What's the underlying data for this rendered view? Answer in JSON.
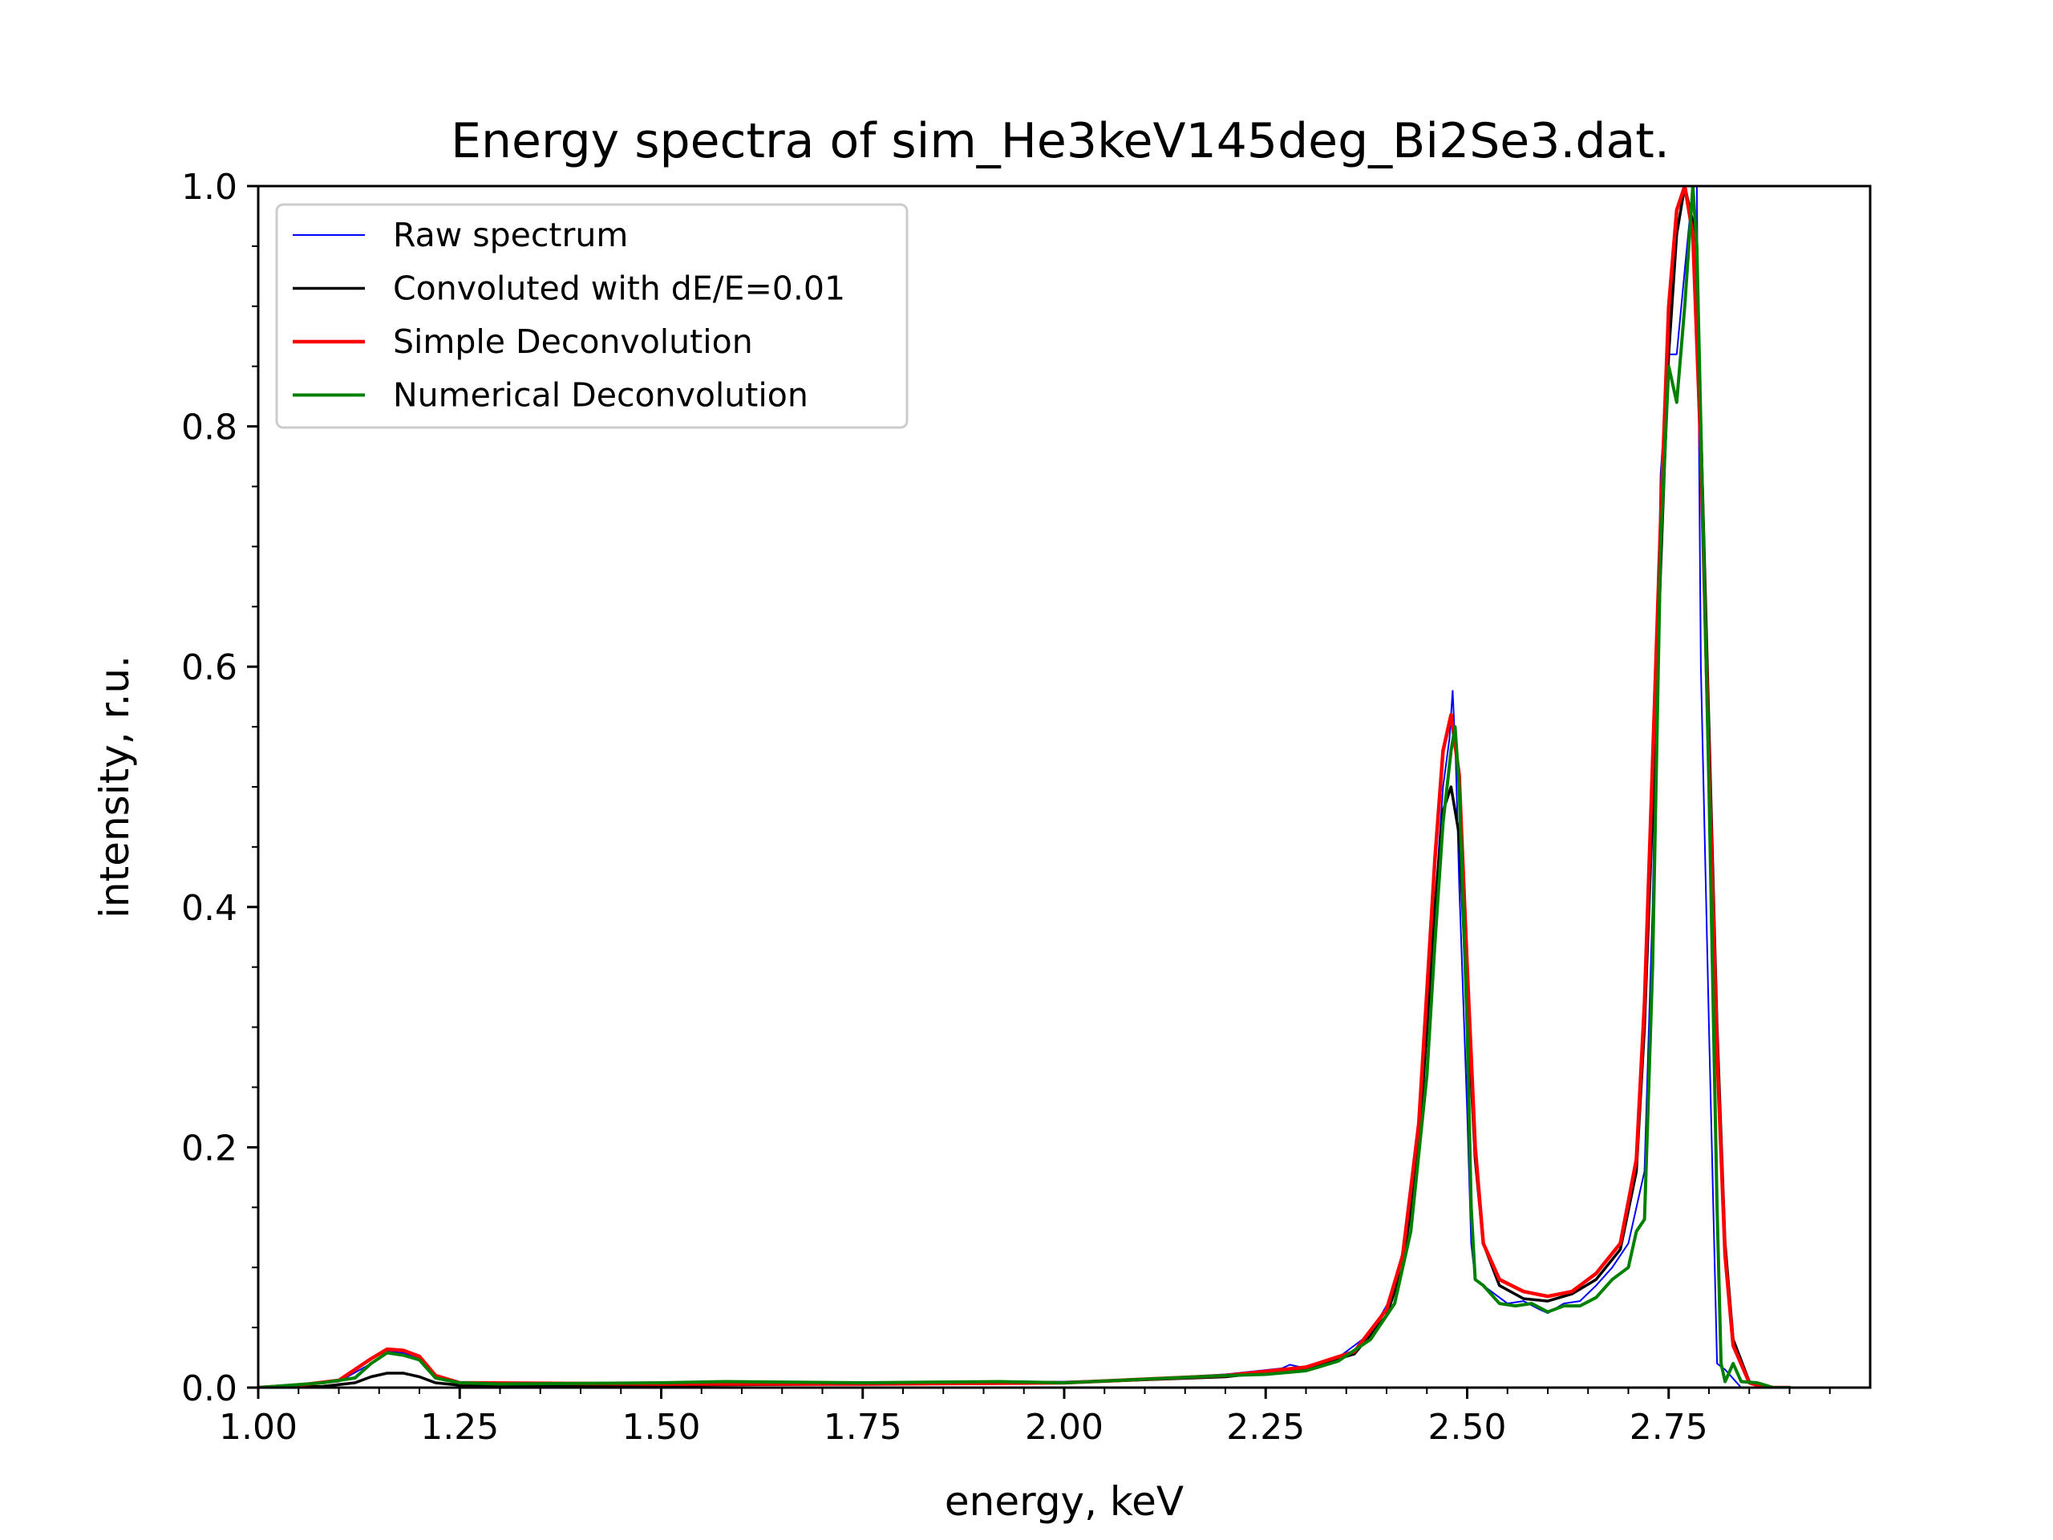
{
  "chart_data": {
    "type": "line",
    "title": "Energy spectra of sim_He3keV145deg_Bi2Se3.dat.",
    "xlabel": "energy, keV",
    "ylabel": "intensity, r.u.",
    "xlim": [
      1.0,
      3.0
    ],
    "ylim": [
      0.0,
      1.0
    ],
    "x_major_ticks": [
      "1.00",
      "1.25",
      "1.50",
      "1.75",
      "2.00",
      "2.25",
      "2.50",
      "2.75"
    ],
    "y_major_ticks": [
      "0.0",
      "0.2",
      "0.4",
      "0.6",
      "0.8",
      "1.0"
    ],
    "x_minor_step": 0.05,
    "y_minor_step": 0.05,
    "grid": false,
    "legend_position": "top-left",
    "series": [
      {
        "name": "Raw spectrum",
        "color": "#0000ff",
        "points": [
          [
            1.0,
            0.0
          ],
          [
            1.05,
            0.002
          ],
          [
            1.1,
            0.005
          ],
          [
            1.14,
            0.02
          ],
          [
            1.16,
            0.03
          ],
          [
            1.18,
            0.029
          ],
          [
            1.2,
            0.025
          ],
          [
            1.22,
            0.01
          ],
          [
            1.25,
            0.004
          ],
          [
            1.4,
            0.004
          ],
          [
            1.6,
            0.004
          ],
          [
            1.8,
            0.004
          ],
          [
            2.0,
            0.005
          ],
          [
            2.1,
            0.007
          ],
          [
            2.2,
            0.011
          ],
          [
            2.27,
            0.016
          ],
          [
            2.28,
            0.019
          ],
          [
            2.3,
            0.016
          ],
          [
            2.34,
            0.025
          ],
          [
            2.38,
            0.045
          ],
          [
            2.41,
            0.08
          ],
          [
            2.43,
            0.15
          ],
          [
            2.45,
            0.3
          ],
          [
            2.46,
            0.4
          ],
          [
            2.47,
            0.5
          ],
          [
            2.478,
            0.54
          ],
          [
            2.482,
            0.58
          ],
          [
            2.486,
            0.52
          ],
          [
            2.49,
            0.42
          ],
          [
            2.5,
            0.23
          ],
          [
            2.505,
            0.12
          ],
          [
            2.51,
            0.09
          ],
          [
            2.53,
            0.08
          ],
          [
            2.55,
            0.07
          ],
          [
            2.57,
            0.072
          ],
          [
            2.59,
            0.065
          ],
          [
            2.6,
            0.062
          ],
          [
            2.62,
            0.07
          ],
          [
            2.64,
            0.072
          ],
          [
            2.66,
            0.085
          ],
          [
            2.68,
            0.1
          ],
          [
            2.7,
            0.12
          ],
          [
            2.72,
            0.18
          ],
          [
            2.73,
            0.4
          ],
          [
            2.74,
            0.76
          ],
          [
            2.75,
            0.86
          ],
          [
            2.76,
            0.86
          ],
          [
            2.77,
            0.93
          ],
          [
            2.78,
            1.0
          ],
          [
            2.785,
            1.0
          ],
          [
            2.79,
            0.6
          ],
          [
            2.8,
            0.3
          ],
          [
            2.81,
            0.02
          ],
          [
            2.82,
            0.015
          ],
          [
            2.84,
            0.0
          ],
          [
            2.9,
            0.0
          ]
        ]
      },
      {
        "name": "Convoluted with dE/E=0.01",
        "color": "#000000",
        "points": [
          [
            1.0,
            0.0
          ],
          [
            1.08,
            0.001
          ],
          [
            1.12,
            0.004
          ],
          [
            1.14,
            0.009
          ],
          [
            1.16,
            0.012
          ],
          [
            1.18,
            0.012
          ],
          [
            1.2,
            0.009
          ],
          [
            1.22,
            0.004
          ],
          [
            1.25,
            0.002
          ],
          [
            1.5,
            0.002
          ],
          [
            1.75,
            0.003
          ],
          [
            2.0,
            0.004
          ],
          [
            2.2,
            0.009
          ],
          [
            2.3,
            0.016
          ],
          [
            2.36,
            0.028
          ],
          [
            2.4,
            0.06
          ],
          [
            2.42,
            0.1
          ],
          [
            2.44,
            0.2
          ],
          [
            2.45,
            0.3
          ],
          [
            2.46,
            0.4
          ],
          [
            2.47,
            0.48
          ],
          [
            2.48,
            0.5
          ],
          [
            2.49,
            0.46
          ],
          [
            2.5,
            0.32
          ],
          [
            2.51,
            0.19
          ],
          [
            2.52,
            0.12
          ],
          [
            2.54,
            0.085
          ],
          [
            2.57,
            0.074
          ],
          [
            2.6,
            0.072
          ],
          [
            2.63,
            0.078
          ],
          [
            2.66,
            0.09
          ],
          [
            2.69,
            0.115
          ],
          [
            2.71,
            0.18
          ],
          [
            2.72,
            0.3
          ],
          [
            2.73,
            0.48
          ],
          [
            2.74,
            0.68
          ],
          [
            2.75,
            0.86
          ],
          [
            2.76,
            0.96
          ],
          [
            2.77,
            1.0
          ],
          [
            2.78,
            0.97
          ],
          [
            2.79,
            0.8
          ],
          [
            2.8,
            0.55
          ],
          [
            2.81,
            0.3
          ],
          [
            2.82,
            0.12
          ],
          [
            2.83,
            0.04
          ],
          [
            2.85,
            0.005
          ],
          [
            2.87,
            0.0
          ],
          [
            2.9,
            0.0
          ]
        ]
      },
      {
        "name": "Simple Deconvolution",
        "color": "#ff0000",
        "points": [
          [
            1.0,
            0.0
          ],
          [
            1.05,
            0.002
          ],
          [
            1.1,
            0.006
          ],
          [
            1.14,
            0.024
          ],
          [
            1.16,
            0.032
          ],
          [
            1.18,
            0.031
          ],
          [
            1.2,
            0.026
          ],
          [
            1.22,
            0.01
          ],
          [
            1.25,
            0.004
          ],
          [
            1.5,
            0.003
          ],
          [
            1.75,
            0.003
          ],
          [
            2.0,
            0.004
          ],
          [
            2.2,
            0.01
          ],
          [
            2.3,
            0.017
          ],
          [
            2.36,
            0.03
          ],
          [
            2.4,
            0.065
          ],
          [
            2.42,
            0.11
          ],
          [
            2.44,
            0.22
          ],
          [
            2.45,
            0.33
          ],
          [
            2.46,
            0.44
          ],
          [
            2.47,
            0.53
          ],
          [
            2.48,
            0.56
          ],
          [
            2.49,
            0.51
          ],
          [
            2.5,
            0.35
          ],
          [
            2.51,
            0.2
          ],
          [
            2.52,
            0.12
          ],
          [
            2.54,
            0.09
          ],
          [
            2.57,
            0.08
          ],
          [
            2.6,
            0.076
          ],
          [
            2.63,
            0.08
          ],
          [
            2.66,
            0.095
          ],
          [
            2.69,
            0.12
          ],
          [
            2.71,
            0.19
          ],
          [
            2.72,
            0.32
          ],
          [
            2.73,
            0.52
          ],
          [
            2.74,
            0.72
          ],
          [
            2.75,
            0.9
          ],
          [
            2.76,
            0.98
          ],
          [
            2.77,
            1.0
          ],
          [
            2.78,
            0.96
          ],
          [
            2.79,
            0.78
          ],
          [
            2.8,
            0.52
          ],
          [
            2.81,
            0.28
          ],
          [
            2.82,
            0.11
          ],
          [
            2.83,
            0.035
          ],
          [
            2.85,
            0.004
          ],
          [
            2.87,
            0.0
          ],
          [
            2.9,
            0.0
          ]
        ]
      },
      {
        "name": "Numerical Deconvolution",
        "color": "#008000",
        "points": [
          [
            1.0,
            0.0
          ],
          [
            1.04,
            0.002
          ],
          [
            1.08,
            0.004
          ],
          [
            1.12,
            0.008
          ],
          [
            1.14,
            0.02
          ],
          [
            1.16,
            0.029
          ],
          [
            1.18,
            0.027
          ],
          [
            1.2,
            0.023
          ],
          [
            1.22,
            0.008
          ],
          [
            1.25,
            0.004
          ],
          [
            1.3,
            0.003
          ],
          [
            1.5,
            0.004
          ],
          [
            1.58,
            0.005
          ],
          [
            1.75,
            0.004
          ],
          [
            1.92,
            0.005
          ],
          [
            2.0,
            0.004
          ],
          [
            2.1,
            0.007
          ],
          [
            2.2,
            0.01
          ],
          [
            2.25,
            0.011
          ],
          [
            2.3,
            0.014
          ],
          [
            2.34,
            0.022
          ],
          [
            2.38,
            0.04
          ],
          [
            2.41,
            0.07
          ],
          [
            2.43,
            0.13
          ],
          [
            2.45,
            0.26
          ],
          [
            2.46,
            0.37
          ],
          [
            2.47,
            0.47
          ],
          [
            2.48,
            0.53
          ],
          [
            2.485,
            0.55
          ],
          [
            2.49,
            0.5
          ],
          [
            2.5,
            0.3
          ],
          [
            2.505,
            0.15
          ],
          [
            2.51,
            0.09
          ],
          [
            2.52,
            0.085
          ],
          [
            2.54,
            0.07
          ],
          [
            2.56,
            0.068
          ],
          [
            2.58,
            0.07
          ],
          [
            2.6,
            0.063
          ],
          [
            2.62,
            0.068
          ],
          [
            2.64,
            0.068
          ],
          [
            2.66,
            0.075
          ],
          [
            2.68,
            0.09
          ],
          [
            2.7,
            0.1
          ],
          [
            2.71,
            0.13
          ],
          [
            2.72,
            0.14
          ],
          [
            2.73,
            0.35
          ],
          [
            2.74,
            0.7
          ],
          [
            2.75,
            0.85
          ],
          [
            2.76,
            0.82
          ],
          [
            2.77,
            0.9
          ],
          [
            2.78,
            1.0
          ],
          [
            2.785,
            0.95
          ],
          [
            2.79,
            0.8
          ],
          [
            2.8,
            0.5
          ],
          [
            2.81,
            0.15
          ],
          [
            2.815,
            0.02
          ],
          [
            2.82,
            0.005
          ],
          [
            2.83,
            0.02
          ],
          [
            2.84,
            0.005
          ],
          [
            2.86,
            0.004
          ],
          [
            2.88,
            0.0
          ],
          [
            2.9,
            0.0
          ]
        ]
      }
    ]
  }
}
